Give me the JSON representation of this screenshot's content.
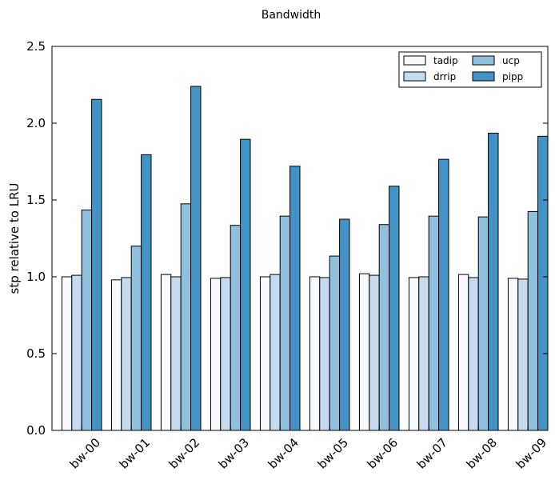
{
  "chart_data": {
    "type": "bar",
    "title": "Bandwidth",
    "xlabel": "",
    "ylabel": "stp relative to LRU",
    "ylim": [
      0,
      2.5
    ],
    "yticks": [
      "0.0",
      "0.5",
      "1.0",
      "1.5",
      "2.0",
      "2.5"
    ],
    "ytick_values": [
      0,
      0.5,
      1.0,
      1.5,
      2.0,
      2.5
    ],
    "categories": [
      "bw-00",
      "bw-01",
      "bw-02",
      "bw-03",
      "bw-04",
      "bw-05",
      "bw-06",
      "bw-07",
      "bw-08",
      "bw-09"
    ],
    "series": [
      {
        "name": "tadip",
        "color": "#f7fbff",
        "values": [
          1.0,
          0.98,
          1.015,
          0.99,
          1.0,
          1.0,
          1.02,
          0.995,
          1.015,
          0.99
        ]
      },
      {
        "name": "drrip",
        "color": "#c6dbef",
        "values": [
          1.01,
          0.995,
          1.0,
          0.995,
          1.015,
          0.995,
          1.01,
          1.0,
          0.995,
          0.985
        ]
      },
      {
        "name": "ucp",
        "color": "#8fc1de",
        "values": [
          1.435,
          1.2,
          1.475,
          1.335,
          1.395,
          1.135,
          1.34,
          1.395,
          1.39,
          1.425
        ]
      },
      {
        "name": "pipp",
        "color": "#4393c7",
        "values": [
          2.155,
          1.795,
          2.24,
          1.895,
          1.72,
          1.375,
          1.59,
          1.765,
          1.935,
          1.915
        ]
      }
    ],
    "legend": {
      "position": "top-right",
      "columns": 2
    }
  }
}
